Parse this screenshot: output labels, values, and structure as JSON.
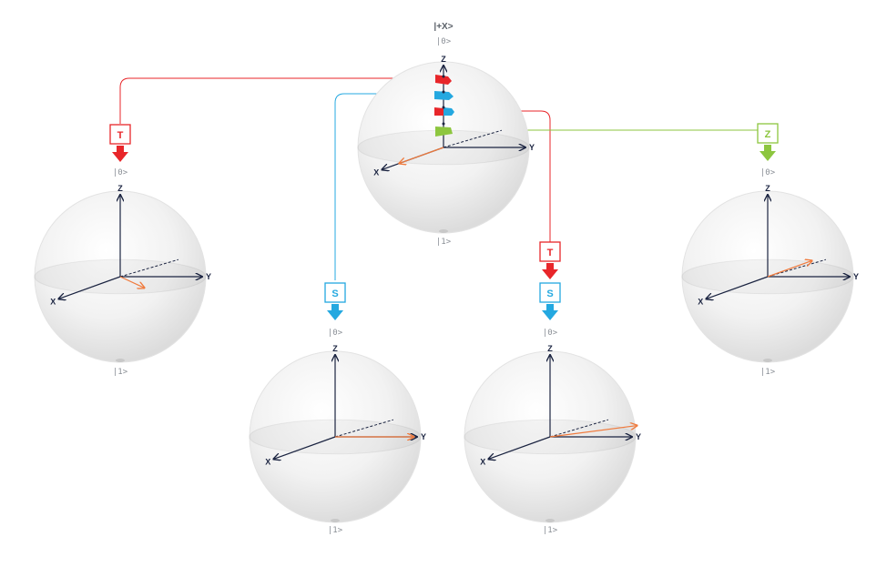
{
  "title": "|+X>",
  "kets": {
    "zero": "|0>",
    "one": "|1>"
  },
  "axes": {
    "x": "X",
    "y": "Y",
    "z": "Z"
  },
  "colors": {
    "t_gate": "#e8262a",
    "s_gate": "#24a8e0",
    "z_gate": "#8dc63f",
    "axis": "#1a2340",
    "state_vector": "#f07a3c",
    "sphere": "#ededed"
  },
  "gates": {
    "t": {
      "label": "T",
      "icon": "down-arrow-icon"
    },
    "s": {
      "label": "S",
      "icon": "down-arrow-icon"
    },
    "z": {
      "label": "Z",
      "icon": "down-arrow-icon"
    }
  },
  "spheres": [
    {
      "id": "center",
      "state_deg": 0,
      "gates": []
    },
    {
      "id": "after-t",
      "state_deg": -45,
      "gates": [
        "T"
      ]
    },
    {
      "id": "after-s",
      "state_deg": -90,
      "gates": [
        "S"
      ]
    },
    {
      "id": "after-t-s",
      "state_deg": -135,
      "gates": [
        "T",
        "S"
      ]
    },
    {
      "id": "after-z",
      "state_deg": 180,
      "gates": [
        "Z"
      ]
    }
  ]
}
